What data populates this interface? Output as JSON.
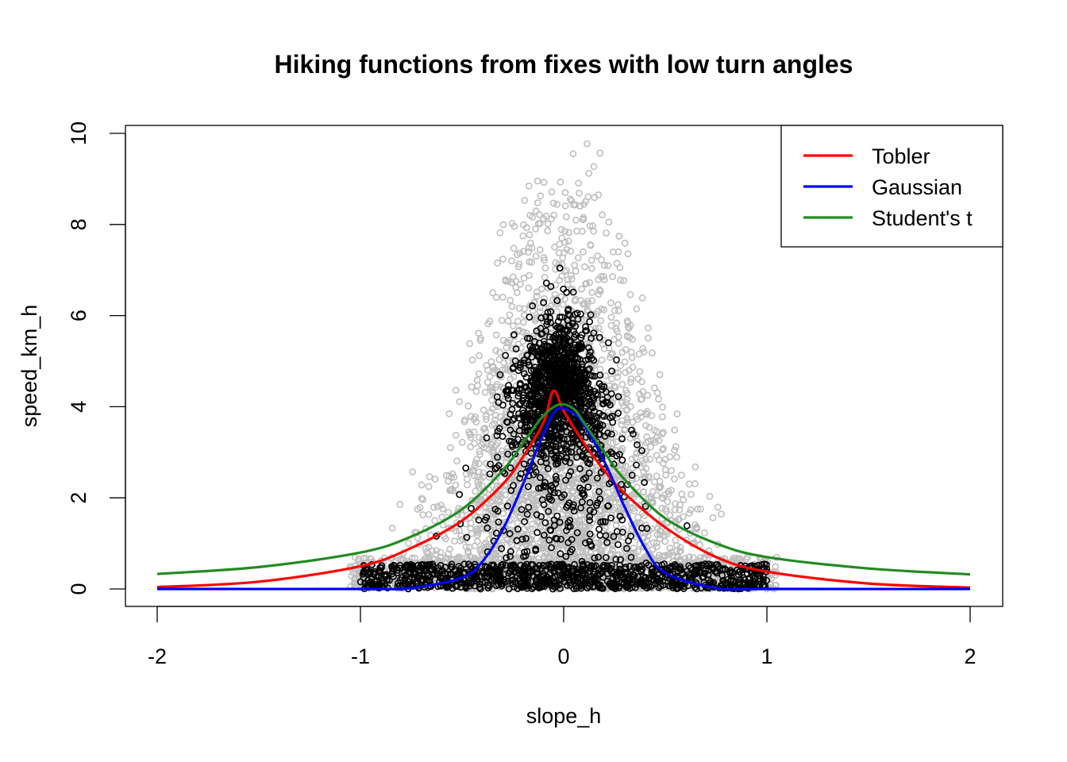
{
  "chart_data": {
    "type": "scatter",
    "title": "Hiking functions from fixes with low turn angles",
    "xlabel": "slope_h",
    "ylabel": "speed_km_h",
    "xlim": [
      -2,
      2
    ],
    "ylim": [
      0,
      10
    ],
    "x_ticks": [
      "-2",
      "-1",
      "0",
      "1",
      "2"
    ],
    "y_ticks": [
      "0",
      "2",
      "4",
      "6",
      "8",
      "10"
    ],
    "grid": false,
    "legend": {
      "position": "top-right",
      "entries": [
        {
          "label": "Tobler",
          "color": "#ff0000"
        },
        {
          "label": "Gaussian",
          "color": "#0000ff"
        },
        {
          "label": "Student's t",
          "color": "#228b22"
        }
      ]
    },
    "point_colors": {
      "all_fixes": "#bebebe",
      "low_turn_fixes": "#000000"
    },
    "series": [
      {
        "name": "Tobler",
        "color": "#ff0000",
        "x": [
          -2.0,
          -1.5,
          -1.0,
          -0.75,
          -0.5,
          -0.3,
          -0.2,
          -0.1,
          -0.05,
          0.0,
          0.1,
          0.2,
          0.3,
          0.5,
          0.75,
          1.0,
          1.5,
          2.0
        ],
        "y": [
          0.04,
          0.16,
          0.5,
          0.9,
          1.5,
          2.3,
          2.9,
          3.65,
          4.35,
          3.9,
          3.2,
          2.6,
          2.1,
          1.35,
          0.7,
          0.38,
          0.12,
          0.03
        ]
      },
      {
        "name": "Gaussian",
        "color": "#0000ff",
        "x": [
          -2.0,
          -1.0,
          -0.75,
          -0.5,
          -0.4,
          -0.3,
          -0.2,
          -0.1,
          -0.03,
          0.05,
          0.1,
          0.2,
          0.3,
          0.4,
          0.5,
          0.75,
          1.0,
          2.0
        ],
        "y": [
          0.0,
          0.0,
          0.02,
          0.25,
          0.6,
          1.3,
          2.3,
          3.4,
          3.95,
          3.85,
          3.6,
          2.8,
          1.8,
          0.9,
          0.35,
          0.02,
          0.0,
          0.0
        ]
      },
      {
        "name": "Student's t",
        "color": "#228b22",
        "x": [
          -2.0,
          -1.5,
          -1.0,
          -0.75,
          -0.5,
          -0.3,
          -0.2,
          -0.1,
          -0.02,
          0.05,
          0.1,
          0.2,
          0.3,
          0.5,
          0.75,
          1.0,
          1.5,
          2.0
        ],
        "y": [
          0.33,
          0.48,
          0.8,
          1.15,
          1.75,
          2.6,
          3.2,
          3.8,
          4.05,
          3.95,
          3.65,
          3.0,
          2.4,
          1.55,
          1.0,
          0.7,
          0.45,
          0.32
        ]
      }
    ]
  }
}
